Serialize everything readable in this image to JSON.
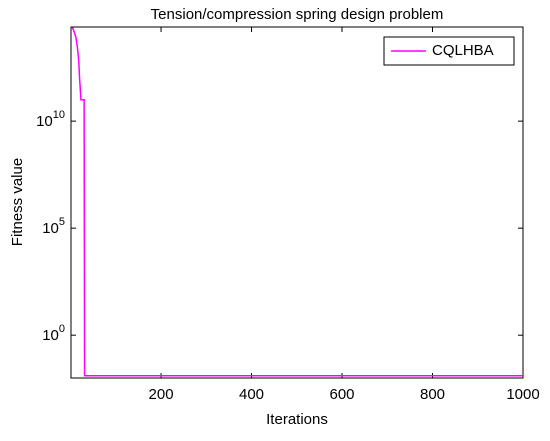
{
  "chart_data": {
    "type": "line",
    "title": "Tension/compression spring design problem",
    "x_label": "Iterations",
    "y_label": "Fitness value",
    "x": [
      1,
      5,
      8,
      12,
      15,
      18,
      20,
      23,
      30,
      31,
      200,
      1000
    ],
    "series": [
      {
        "name": "CQLHBA",
        "color": "#ff00ff",
        "values": [
          220000000000000,
          220000000000000,
          150000000000000,
          80000000000000,
          30000000000000,
          7000000000000,
          1000000000000,
          100000000000,
          100000000000,
          0.0127,
          0.0127,
          0.0127
        ]
      }
    ],
    "xlim": [
      1,
      1000
    ],
    "xticks": [
      200,
      400,
      600,
      800,
      1000
    ],
    "ylim": [
      0.01,
      250000000000000
    ],
    "y_scale": "log",
    "yticks": [
      {
        "value": 1,
        "label": "10^0"
      },
      {
        "value": 100000,
        "label": "10^5"
      },
      {
        "value": 10000000000,
        "label": "10^10"
      }
    ],
    "legend": "northeast"
  }
}
